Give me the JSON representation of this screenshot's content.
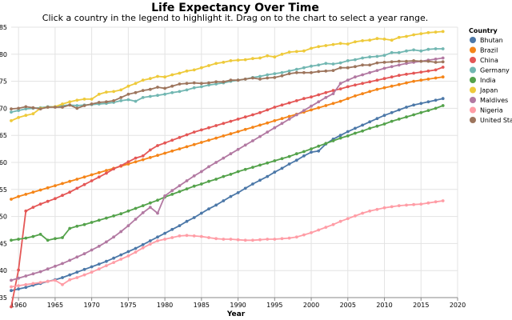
{
  "page": {
    "title": "Life Expectancy Over Time",
    "subtitle": "Click a country in the legend to highlight it. Drag on to the chart to select a year range."
  },
  "chart_data": {
    "type": "line",
    "title": "Life Expectancy Over Time",
    "subtitle": "Click a country in the legend to highlight it. Drag on to the chart to select a year range.",
    "xlabel": "Year",
    "ylabel": "",
    "xlim": [
      1959,
      2020
    ],
    "ylim": [
      35,
      85
    ],
    "x_ticks": [
      1960,
      1965,
      1970,
      1975,
      1980,
      1985,
      1990,
      1995,
      2000,
      2005,
      2010,
      2015,
      2020
    ],
    "y_ticks": [
      35,
      40,
      45,
      50,
      55,
      60,
      65,
      70,
      75,
      80,
      85
    ],
    "grid": true,
    "legend": {
      "title": "Country",
      "placement": "right"
    },
    "x": [
      1959,
      1960,
      1961,
      1962,
      1963,
      1964,
      1965,
      1966,
      1967,
      1968,
      1969,
      1970,
      1971,
      1972,
      1973,
      1974,
      1975,
      1976,
      1977,
      1978,
      1979,
      1980,
      1981,
      1982,
      1983,
      1984,
      1985,
      1986,
      1987,
      1988,
      1989,
      1990,
      1991,
      1992,
      1993,
      1994,
      1995,
      1996,
      1997,
      1998,
      1999,
      2000,
      2001,
      2002,
      2003,
      2004,
      2005,
      2006,
      2007,
      2008,
      2009,
      2010,
      2011,
      2012,
      2013,
      2014,
      2015,
      2016,
      2017,
      2018
    ],
    "series": [
      {
        "name": "Bhutan",
        "color": "#4c78a8",
        "values": [
          36.3,
          36.6,
          36.9,
          37.3,
          37.6,
          38.0,
          38.3,
          38.7,
          39.2,
          39.7,
          40.2,
          40.7,
          41.2,
          41.7,
          42.3,
          42.9,
          43.5,
          44.1,
          44.8,
          45.5,
          46.2,
          46.9,
          47.6,
          48.3,
          49.1,
          49.8,
          50.6,
          51.4,
          52.1,
          52.9,
          53.7,
          54.4,
          55.2,
          56.0,
          56.7,
          57.4,
          58.2,
          58.9,
          59.7,
          60.4,
          61.2,
          61.9,
          62.1,
          63.4,
          64.3,
          65.0,
          65.7,
          66.3,
          66.9,
          67.5,
          68.1,
          68.7,
          69.2,
          69.7,
          70.2,
          70.6,
          70.9,
          71.2,
          71.5,
          71.8
        ]
      },
      {
        "name": "Brazil",
        "color": "#f58518",
        "values": [
          53.2,
          53.7,
          54.1,
          54.5,
          54.9,
          55.3,
          55.7,
          56.1,
          56.5,
          56.9,
          57.3,
          57.7,
          58.1,
          58.5,
          58.9,
          59.3,
          59.7,
          60.1,
          60.5,
          60.9,
          61.3,
          61.7,
          62.1,
          62.5,
          62.9,
          63.3,
          63.7,
          64.1,
          64.5,
          64.9,
          65.3,
          65.7,
          66.1,
          66.5,
          66.9,
          67.3,
          67.7,
          68.1,
          68.5,
          68.9,
          69.3,
          69.7,
          70.1,
          70.5,
          70.9,
          71.3,
          71.8,
          72.3,
          72.7,
          73.1,
          73.5,
          73.8,
          74.1,
          74.4,
          74.7,
          75.0,
          75.2,
          75.4,
          75.6,
          75.8
        ]
      },
      {
        "name": "China",
        "color": "#e45756",
        "values": [
          33.3,
          40.1,
          51.0,
          51.7,
          52.3,
          52.8,
          53.3,
          53.9,
          54.5,
          55.2,
          55.9,
          56.6,
          57.3,
          58.0,
          58.8,
          59.4,
          60.1,
          60.8,
          61.2,
          62.3,
          63.1,
          63.6,
          64.1,
          64.6,
          65.1,
          65.6,
          66.0,
          66.4,
          66.8,
          67.2,
          67.6,
          68.0,
          68.4,
          68.8,
          69.2,
          69.7,
          70.2,
          70.6,
          71.0,
          71.4,
          71.8,
          72.1,
          72.5,
          72.9,
          73.3,
          73.6,
          74.0,
          74.3,
          74.6,
          74.9,
          75.2,
          75.5,
          75.8,
          76.1,
          76.3,
          76.5,
          76.7,
          76.9,
          77.1,
          77.6
        ]
      },
      {
        "name": "Germany",
        "color": "#72b7b2",
        "values": [
          69.3,
          69.6,
          69.9,
          70.0,
          70.1,
          70.3,
          70.3,
          70.5,
          70.6,
          70.5,
          70.6,
          70.7,
          70.8,
          70.9,
          71.1,
          71.4,
          71.6,
          71.3,
          72.0,
          72.2,
          72.4,
          72.6,
          72.9,
          73.1,
          73.4,
          73.8,
          74.0,
          74.3,
          74.5,
          74.7,
          75.0,
          75.2,
          75.4,
          75.7,
          75.9,
          76.2,
          76.4,
          76.6,
          76.9,
          77.2,
          77.5,
          77.8,
          78.0,
          78.3,
          78.2,
          78.4,
          78.8,
          79.0,
          79.3,
          79.5,
          79.6,
          79.8,
          80.3,
          80.3,
          80.6,
          80.8,
          80.6,
          80.9,
          81.0,
          81.0
        ]
      },
      {
        "name": "India",
        "color": "#54a24b",
        "values": [
          45.6,
          45.8,
          46.0,
          46.3,
          46.7,
          45.6,
          45.9,
          46.1,
          47.8,
          48.2,
          48.5,
          48.9,
          49.3,
          49.7,
          50.1,
          50.5,
          51.0,
          51.5,
          52.0,
          52.5,
          53.0,
          53.6,
          54.1,
          54.6,
          55.1,
          55.6,
          56.0,
          56.5,
          56.9,
          57.4,
          57.8,
          58.3,
          58.7,
          59.1,
          59.5,
          59.9,
          60.3,
          60.7,
          61.1,
          61.6,
          62.0,
          62.5,
          63.0,
          63.5,
          64.0,
          64.5,
          64.9,
          65.4,
          65.8,
          66.3,
          66.7,
          67.1,
          67.6,
          68.0,
          68.4,
          68.8,
          69.2,
          69.6,
          70.0,
          70.5
        ]
      },
      {
        "name": "Japan",
        "color": "#eeca3b",
        "values": [
          67.7,
          68.3,
          68.7,
          69.0,
          70.0,
          70.2,
          70.3,
          70.8,
          71.2,
          71.5,
          71.7,
          71.7,
          72.6,
          73.0,
          73.1,
          73.4,
          74.1,
          74.6,
          75.2,
          75.5,
          75.9,
          75.8,
          76.2,
          76.5,
          76.9,
          77.1,
          77.5,
          77.9,
          78.3,
          78.5,
          78.8,
          78.9,
          79.0,
          79.2,
          79.3,
          79.7,
          79.5,
          80.0,
          80.4,
          80.5,
          80.6,
          81.1,
          81.4,
          81.6,
          81.8,
          82.0,
          81.9,
          82.3,
          82.5,
          82.6,
          82.9,
          82.8,
          82.6,
          83.1,
          83.3,
          83.6,
          83.8,
          84.0,
          84.1,
          84.2
        ]
      },
      {
        "name": "Maldives",
        "color": "#b279a2",
        "values": [
          38.2,
          38.6,
          39.0,
          39.4,
          39.8,
          40.3,
          40.8,
          41.3,
          41.9,
          42.5,
          43.1,
          43.8,
          44.5,
          45.3,
          46.2,
          47.2,
          48.3,
          49.5,
          50.7,
          51.7,
          50.6,
          53.8,
          54.8,
          55.7,
          56.6,
          57.5,
          58.3,
          59.2,
          60.0,
          60.8,
          61.6,
          62.4,
          63.2,
          64.0,
          64.8,
          65.6,
          66.4,
          67.2,
          68.0,
          68.8,
          69.6,
          70.4,
          71.2,
          72.0,
          72.7,
          74.6,
          75.2,
          75.8,
          76.2,
          76.6,
          77.0,
          77.4,
          77.7,
          78.0,
          78.3,
          78.5,
          78.7,
          78.9,
          79.1,
          79.3
        ]
      },
      {
        "name": "Nigeria",
        "color": "#ff9da6",
        "values": [
          37.0,
          37.2,
          37.4,
          37.6,
          37.8,
          38.0,
          38.2,
          37.4,
          38.3,
          38.7,
          39.2,
          39.7,
          40.3,
          40.9,
          41.5,
          42.1,
          42.7,
          43.4,
          44.2,
          44.9,
          45.5,
          45.8,
          46.1,
          46.4,
          46.5,
          46.4,
          46.3,
          46.1,
          45.9,
          45.8,
          45.8,
          45.7,
          45.6,
          45.6,
          45.7,
          45.8,
          45.8,
          45.9,
          46.0,
          46.2,
          46.6,
          47.0,
          47.5,
          48.0,
          48.5,
          49.1,
          49.6,
          50.1,
          50.6,
          51.0,
          51.3,
          51.6,
          51.8,
          52.0,
          52.1,
          52.2,
          52.3,
          52.5,
          52.7,
          52.9
        ]
      },
      {
        "name": "United States",
        "color": "#9d755d",
        "values": [
          69.9,
          70.0,
          70.3,
          70.1,
          69.9,
          70.2,
          70.2,
          70.2,
          70.6,
          70.0,
          70.5,
          70.8,
          71.1,
          71.2,
          71.4,
          72.0,
          72.6,
          72.9,
          73.3,
          73.5,
          73.9,
          73.7,
          74.1,
          74.5,
          74.6,
          74.7,
          74.6,
          74.7,
          74.9,
          74.9,
          75.2,
          75.2,
          75.4,
          75.6,
          75.4,
          75.6,
          75.7,
          76.0,
          76.4,
          76.6,
          76.6,
          76.6,
          76.8,
          76.9,
          77.0,
          77.5,
          77.5,
          77.7,
          78.0,
          78.0,
          78.4,
          78.5,
          78.6,
          78.7,
          78.7,
          78.8,
          78.7,
          78.7,
          78.5,
          78.6
        ]
      }
    ]
  }
}
